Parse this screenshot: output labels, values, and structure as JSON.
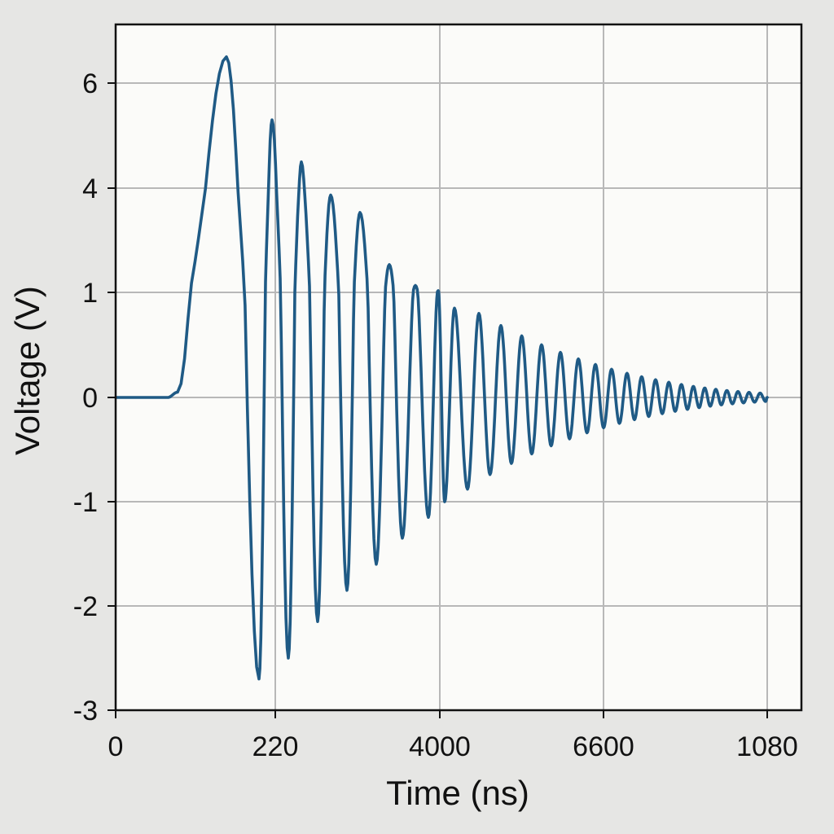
{
  "chart_data": {
    "type": "line",
    "title": "",
    "xlabel": "Time (ns)",
    "ylabel": "Voltage (V)",
    "x_ticks": [
      "0",
      "220",
      "4000",
      "6600",
      "1080"
    ],
    "y_ticks": [
      "6",
      "4",
      "1",
      "0",
      "-1",
      "-2",
      "-3"
    ],
    "grid": true,
    "legend": "none",
    "series_color": "#1f5a85",
    "series": [
      {
        "name": "",
        "peaks": [
          {
            "x": 0.17,
            "y": 6.5
          },
          {
            "x": 0.22,
            "y": -2.7
          },
          {
            "x": 0.24,
            "y": 5.3
          },
          {
            "x": 0.265,
            "y": -2.5
          },
          {
            "x": 0.285,
            "y": 4.5
          },
          {
            "x": 0.31,
            "y": -2.15
          },
          {
            "x": 0.33,
            "y": 3.8
          },
          {
            "x": 0.355,
            "y": -1.85
          },
          {
            "x": 0.375,
            "y": 3.3
          },
          {
            "x": 0.4,
            "y": -1.6
          },
          {
            "x": 0.42,
            "y": 1.8
          },
          {
            "x": 0.44,
            "y": -1.35
          },
          {
            "x": 0.46,
            "y": 1.2
          },
          {
            "x": 0.48,
            "y": -1.15
          },
          {
            "x": 0.495,
            "y": 1.05
          },
          {
            "x": 0.505,
            "y": -1.0
          },
          {
            "x": 0.52,
            "y": 0.85
          },
          {
            "x": 0.54,
            "y": -0.88
          }
        ]
      }
    ]
  }
}
